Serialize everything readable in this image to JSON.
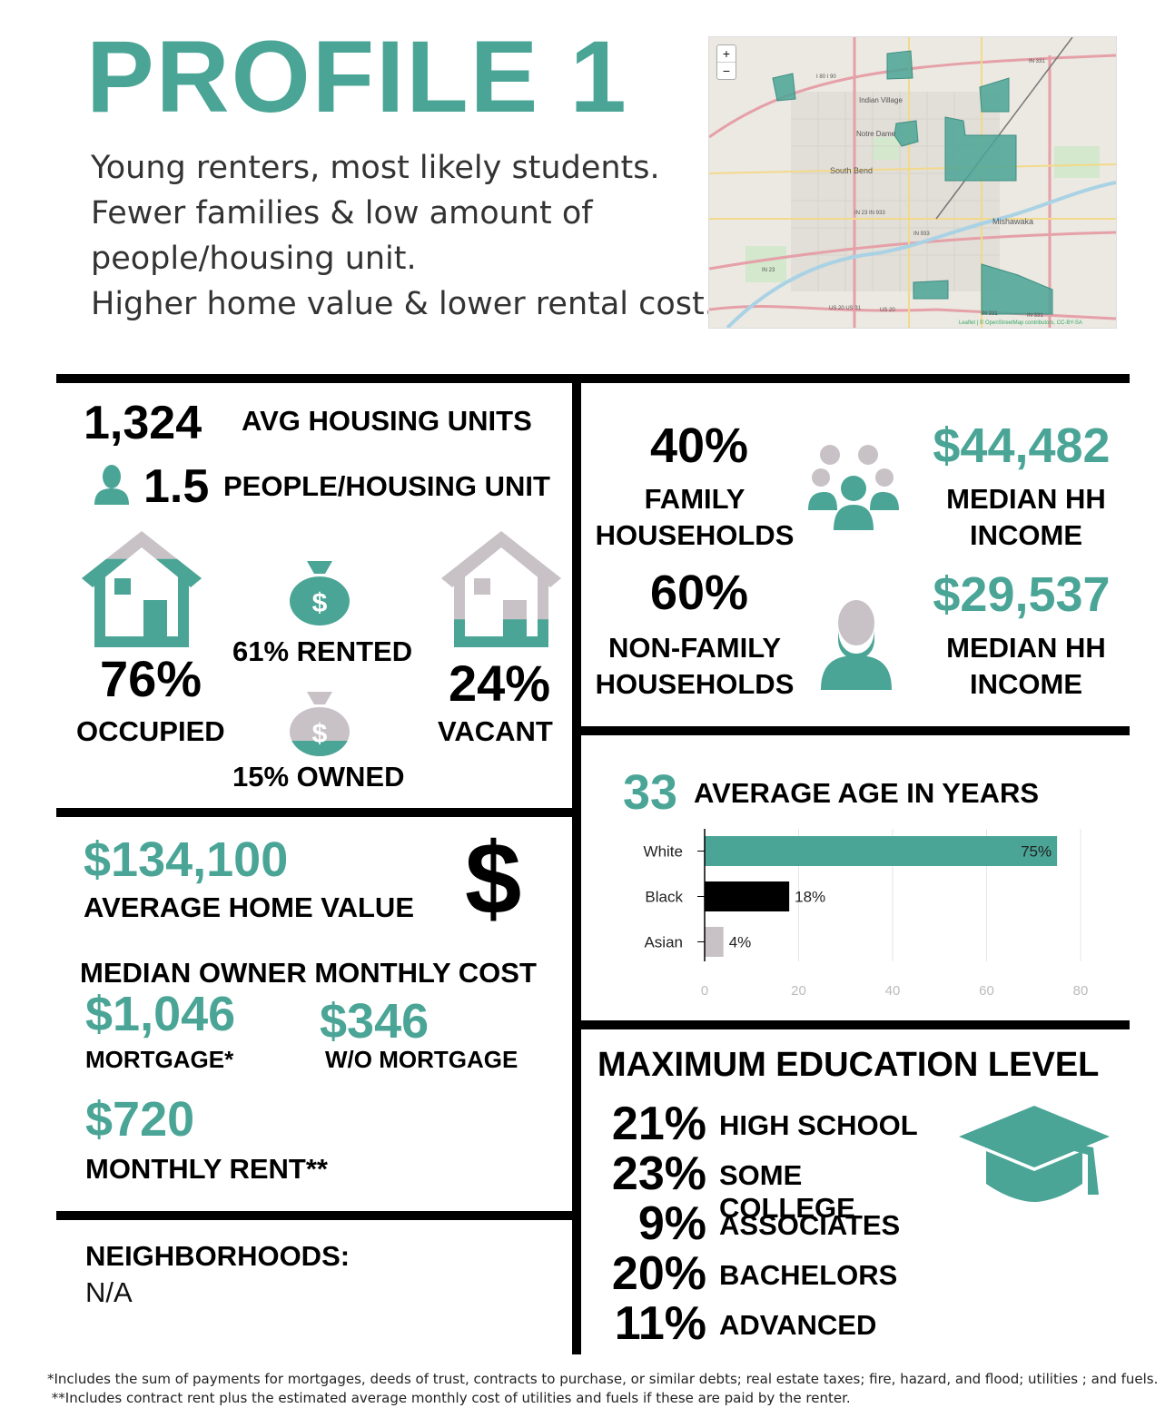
{
  "header": {
    "title": "PROFILE 1",
    "description_lines": [
      "Young renters, most likely students.",
      "Fewer families & low amount of",
      "people/housing unit.",
      "Higher home value & lower rental cost."
    ]
  },
  "map": {
    "zoom_in": "+",
    "zoom_out": "−",
    "labels": [
      "Indian Village",
      "Notre Dame",
      "South Bend",
      "Mishawaka",
      "I 80 I 90",
      "IN 23 IN 933",
      "IN 933",
      "IN 23",
      "US 20 US 31",
      "US 20",
      "IN 331",
      "IN 331",
      "IN 331"
    ],
    "attribution": "Leaflet | © OpenStreetMap contributors, CC-BY-SA",
    "region_color": "#4aa596"
  },
  "housing": {
    "avg_units_value": "1,324",
    "avg_units_label": "AVG HOUSING UNITS",
    "people_value": "1.5",
    "people_label": "PEOPLE/HOUSING UNIT",
    "occupied_pct": "76%",
    "occupied_label": "OCCUPIED",
    "vacant_pct": "24%",
    "vacant_label": "VACANT",
    "rented_label": "61% RENTED",
    "owned_label": "15% OWNED",
    "occupied_fill": 0.76,
    "vacant_fill": 0.24
  },
  "households": {
    "family_pct": "40%",
    "family_label_1": "FAMILY",
    "family_label_2": "HOUSEHOLDS",
    "family_income": "$44,482",
    "nonfamily_pct": "60%",
    "nonfamily_label_1": "NON-FAMILY",
    "nonfamily_label_2": "HOUSEHOLDS",
    "nonfamily_income": "$29,537",
    "income_label_1": "MEDIAN HH",
    "income_label_2": "INCOME"
  },
  "home_value": {
    "value": "$134,100",
    "label": "AVERAGE HOME VALUE",
    "dollar_symbol": "$",
    "owner_cost_heading": "MEDIAN OWNER MONTHLY COST",
    "mortgage_value": "$1,046",
    "mortgage_label": "MORTGAGE*",
    "no_mortgage_value": "$346",
    "no_mortgage_label": "W/O MORTGAGE",
    "rent_value": "$720",
    "rent_label": "MONTHLY RENT**"
  },
  "neighborhoods": {
    "heading": "NEIGHBORHOODS:",
    "value": "N/A"
  },
  "age": {
    "value": "33",
    "label": "AVERAGE AGE IN YEARS"
  },
  "chart_data": {
    "type": "bar",
    "orientation": "horizontal",
    "categories": [
      "White",
      "Black",
      "Asian"
    ],
    "values": [
      75,
      18,
      4
    ],
    "data_labels": [
      "75%",
      "18%",
      "4%"
    ],
    "colors": [
      "#4aa596",
      "#000000",
      "#c8c2c6"
    ],
    "xlim": [
      0,
      80
    ],
    "xticks": [
      0,
      20,
      40,
      60,
      80
    ],
    "grid": true,
    "legend": "none"
  },
  "education": {
    "heading": "MAXIMUM EDUCATION LEVEL",
    "levels": [
      {
        "pct": "21%",
        "label": "HIGH SCHOOL"
      },
      {
        "pct": "23%",
        "label": "SOME COLLEGE"
      },
      {
        "pct": "9%",
        "label": "ASSOCIATES"
      },
      {
        "pct": "20%",
        "label": "BACHELORS"
      },
      {
        "pct": "11%",
        "label": "ADVANCED"
      }
    ]
  },
  "footnotes": [
    "*Includes the sum of payments for mortgages, deeds of trust, contracts to purchase, or similar debts; real estate taxes; fire, hazard, and flood; utilities ; and fuels.",
    " **Includes contract rent plus the estimated average monthly cost of utilities and fuels if these are paid by the renter."
  ],
  "colors": {
    "accent": "#4aa596",
    "gray": "#c8c2c6",
    "black": "#000000"
  }
}
